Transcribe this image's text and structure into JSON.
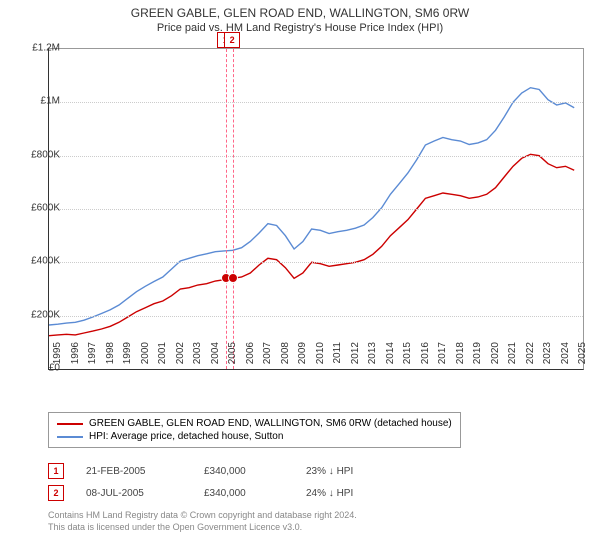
{
  "title": {
    "main": "GREEN GABLE, GLEN ROAD END, WALLINGTON, SM6 0RW",
    "sub": "Price paid vs. HM Land Registry's House Price Index (HPI)"
  },
  "chart": {
    "type": "line",
    "background_color": "#ffffff",
    "grid_color": "#cccccc",
    "axis_color": "#333333",
    "title_fontsize": 12,
    "label_fontsize": 10,
    "x": {
      "min": 1995,
      "max": 2025.5,
      "ticks": [
        1995,
        1996,
        1997,
        1998,
        1999,
        2000,
        2001,
        2002,
        2003,
        2004,
        2005,
        2006,
        2007,
        2008,
        2009,
        2010,
        2011,
        2012,
        2013,
        2014,
        2015,
        2016,
        2017,
        2018,
        2019,
        2020,
        2021,
        2022,
        2023,
        2024,
        2025
      ]
    },
    "y": {
      "min": 0,
      "max": 1200000,
      "ticks": [
        {
          "v": 0,
          "label": "£0"
        },
        {
          "v": 200000,
          "label": "£200K"
        },
        {
          "v": 400000,
          "label": "£400K"
        },
        {
          "v": 600000,
          "label": "£600K"
        },
        {
          "v": 800000,
          "label": "£800K"
        },
        {
          "v": 1000000,
          "label": "£1M"
        },
        {
          "v": 1200000,
          "label": "£1.2M"
        }
      ]
    },
    "series": [
      {
        "name": "price_paid",
        "label": "GREEN GABLE, GLEN ROAD END, WALLINGTON, SM6 0RW (detached house)",
        "color": "#cc0000",
        "line_width": 1.4,
        "points": [
          [
            1995.0,
            125000
          ],
          [
            1995.5,
            128000
          ],
          [
            1996.0,
            130000
          ],
          [
            1996.5,
            128000
          ],
          [
            1997.0,
            135000
          ],
          [
            1997.5,
            142000
          ],
          [
            1998.0,
            150000
          ],
          [
            1998.5,
            160000
          ],
          [
            1999.0,
            175000
          ],
          [
            1999.5,
            195000
          ],
          [
            2000.0,
            215000
          ],
          [
            2000.5,
            230000
          ],
          [
            2001.0,
            245000
          ],
          [
            2001.5,
            255000
          ],
          [
            2002.0,
            275000
          ],
          [
            2002.5,
            300000
          ],
          [
            2003.0,
            305000
          ],
          [
            2003.5,
            315000
          ],
          [
            2004.0,
            320000
          ],
          [
            2004.5,
            330000
          ],
          [
            2005.0,
            335000
          ],
          [
            2005.13,
            340000
          ],
          [
            2005.52,
            340000
          ],
          [
            2006.0,
            345000
          ],
          [
            2006.5,
            360000
          ],
          [
            2007.0,
            390000
          ],
          [
            2007.5,
            415000
          ],
          [
            2008.0,
            410000
          ],
          [
            2008.5,
            380000
          ],
          [
            2009.0,
            340000
          ],
          [
            2009.5,
            360000
          ],
          [
            2010.0,
            400000
          ],
          [
            2010.5,
            395000
          ],
          [
            2011.0,
            385000
          ],
          [
            2011.5,
            390000
          ],
          [
            2012.0,
            395000
          ],
          [
            2012.5,
            400000
          ],
          [
            2013.0,
            410000
          ],
          [
            2013.5,
            430000
          ],
          [
            2014.0,
            460000
          ],
          [
            2014.5,
            500000
          ],
          [
            2015.0,
            530000
          ],
          [
            2015.5,
            560000
          ],
          [
            2016.0,
            600000
          ],
          [
            2016.5,
            640000
          ],
          [
            2017.0,
            650000
          ],
          [
            2017.5,
            660000
          ],
          [
            2018.0,
            655000
          ],
          [
            2018.5,
            650000
          ],
          [
            2019.0,
            640000
          ],
          [
            2019.5,
            645000
          ],
          [
            2020.0,
            655000
          ],
          [
            2020.5,
            680000
          ],
          [
            2021.0,
            720000
          ],
          [
            2021.5,
            760000
          ],
          [
            2022.0,
            790000
          ],
          [
            2022.5,
            805000
          ],
          [
            2023.0,
            800000
          ],
          [
            2023.5,
            770000
          ],
          [
            2024.0,
            755000
          ],
          [
            2024.5,
            760000
          ],
          [
            2025.0,
            745000
          ]
        ]
      },
      {
        "name": "hpi",
        "label": "HPI: Average price, detached house, Sutton",
        "color": "#5b8bd4",
        "line_width": 1.4,
        "points": [
          [
            1995.0,
            165000
          ],
          [
            1995.5,
            168000
          ],
          [
            1996.0,
            172000
          ],
          [
            1996.5,
            175000
          ],
          [
            1997.0,
            183000
          ],
          [
            1997.5,
            195000
          ],
          [
            1998.0,
            208000
          ],
          [
            1998.5,
            222000
          ],
          [
            1999.0,
            240000
          ],
          [
            1999.5,
            265000
          ],
          [
            2000.0,
            290000
          ],
          [
            2000.5,
            310000
          ],
          [
            2001.0,
            328000
          ],
          [
            2001.5,
            345000
          ],
          [
            2002.0,
            375000
          ],
          [
            2002.5,
            405000
          ],
          [
            2003.0,
            415000
          ],
          [
            2003.5,
            425000
          ],
          [
            2004.0,
            432000
          ],
          [
            2004.5,
            440000
          ],
          [
            2005.0,
            443000
          ],
          [
            2005.5,
            445000
          ],
          [
            2006.0,
            455000
          ],
          [
            2006.5,
            478000
          ],
          [
            2007.0,
            510000
          ],
          [
            2007.5,
            545000
          ],
          [
            2008.0,
            538000
          ],
          [
            2008.5,
            500000
          ],
          [
            2009.0,
            450000
          ],
          [
            2009.5,
            478000
          ],
          [
            2010.0,
            525000
          ],
          [
            2010.5,
            520000
          ],
          [
            2011.0,
            508000
          ],
          [
            2011.5,
            515000
          ],
          [
            2012.0,
            520000
          ],
          [
            2012.5,
            528000
          ],
          [
            2013.0,
            540000
          ],
          [
            2013.5,
            568000
          ],
          [
            2014.0,
            605000
          ],
          [
            2014.5,
            655000
          ],
          [
            2015.0,
            695000
          ],
          [
            2015.5,
            735000
          ],
          [
            2016.0,
            785000
          ],
          [
            2016.5,
            840000
          ],
          [
            2017.0,
            855000
          ],
          [
            2017.5,
            868000
          ],
          [
            2018.0,
            860000
          ],
          [
            2018.5,
            855000
          ],
          [
            2019.0,
            842000
          ],
          [
            2019.5,
            848000
          ],
          [
            2020.0,
            860000
          ],
          [
            2020.5,
            895000
          ],
          [
            2021.0,
            945000
          ],
          [
            2021.5,
            1000000
          ],
          [
            2022.0,
            1035000
          ],
          [
            2022.5,
            1055000
          ],
          [
            2023.0,
            1048000
          ],
          [
            2023.5,
            1010000
          ],
          [
            2024.0,
            990000
          ],
          [
            2024.5,
            998000
          ],
          [
            2025.0,
            980000
          ]
        ]
      }
    ],
    "markers": [
      {
        "idx": "1",
        "x": 2005.13,
        "y": 340000,
        "color": "#cc0000",
        "dash_color": "#ff6688"
      },
      {
        "idx": "2",
        "x": 2005.52,
        "y": 340000,
        "color": "#cc0000",
        "dash_color": "#ff6688"
      }
    ]
  },
  "legend": {
    "border_color": "#999999",
    "items": [
      {
        "color": "#cc0000",
        "text": "GREEN GABLE, GLEN ROAD END, WALLINGTON, SM6 0RW (detached house)"
      },
      {
        "color": "#5b8bd4",
        "text": "HPI: Average price, detached house, Sutton"
      }
    ]
  },
  "sales": [
    {
      "idx": "1",
      "date": "21-FEB-2005",
      "price": "£340,000",
      "delta": "23% ↓ HPI"
    },
    {
      "idx": "2",
      "date": "08-JUL-2005",
      "price": "£340,000",
      "delta": "24% ↓ HPI"
    }
  ],
  "footer": {
    "line1": "Contains HM Land Registry data © Crown copyright and database right 2024.",
    "line2": "This data is licensed under the Open Government Licence v3.0."
  }
}
